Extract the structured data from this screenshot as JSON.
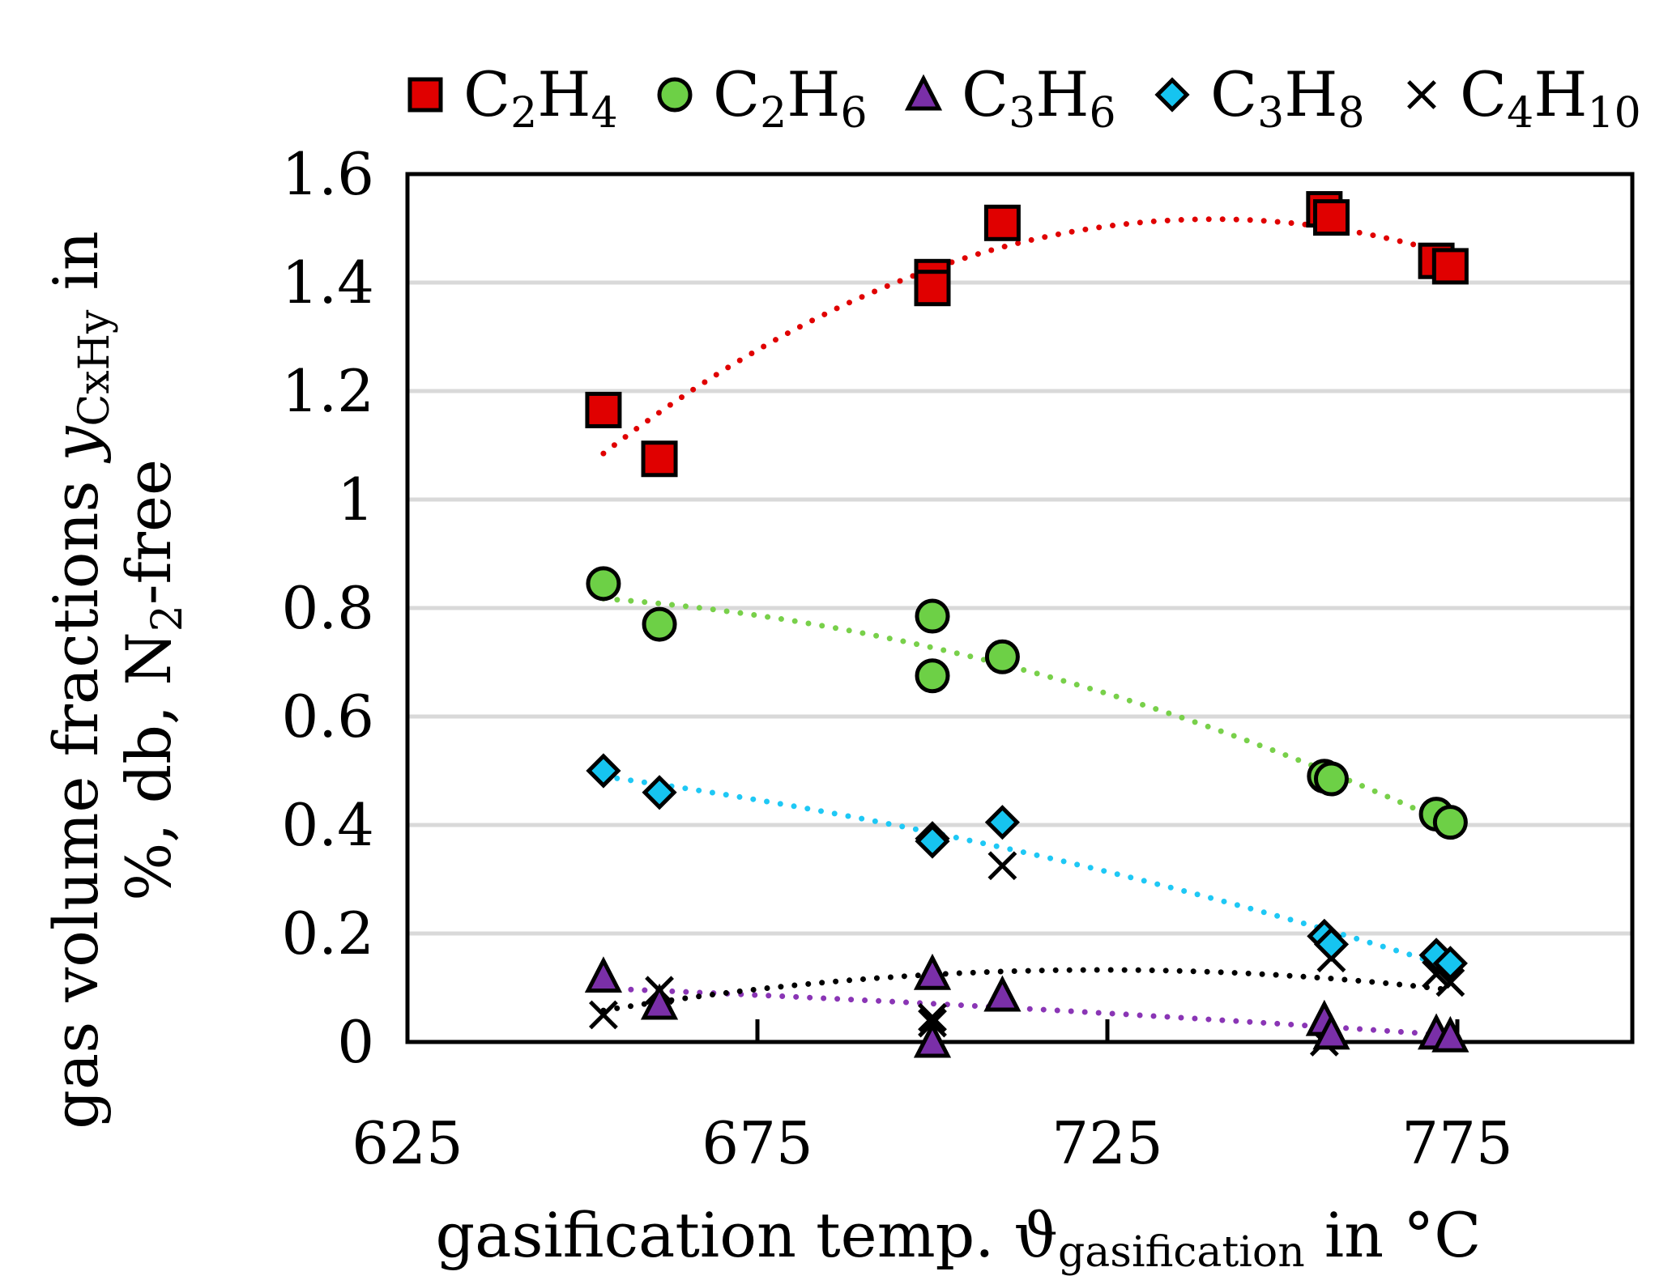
{
  "chart_data": {
    "type": "scatter",
    "title": "",
    "xlabel": {
      "main": "gasification temp. ϑ",
      "sub": "gasification",
      "tail": " in °C"
    },
    "ylabel": {
      "line1_main": "gas volume fractions ",
      "line1_var": "y",
      "line1_sub": "CxHy",
      "line1_tail": " in",
      "line2_main": "%, db, N",
      "line2_sub": "2",
      "line2_tail": "-free"
    },
    "xlim": [
      625,
      800
    ],
    "ylim": [
      0,
      1.6
    ],
    "xticks": [
      625,
      675,
      725,
      775
    ],
    "xtick_labels": [
      "625",
      "675",
      "725",
      "775"
    ],
    "yticks": [
      0,
      0.2,
      0.4,
      0.6,
      0.8,
      1,
      1.2,
      1.4,
      1.6
    ],
    "ytick_labels": [
      "0",
      "0.2",
      "0.4",
      "0.6",
      "0.8",
      "1",
      "1.2",
      "1.4",
      "1.6"
    ],
    "grid": "horizontal",
    "legend_position": "top",
    "series": [
      {
        "name": "C2H4",
        "label_main": "C",
        "label_sub1": "2",
        "label_mid": "H",
        "label_sub2": "4",
        "marker": "square",
        "color": "#e00000",
        "trend_color": "#e00000",
        "x": [
          653,
          661,
          700,
          700,
          710,
          756,
          757,
          772,
          774
        ],
        "y": [
          1.165,
          1.075,
          1.41,
          1.39,
          1.51,
          1.535,
          1.52,
          1.44,
          1.43
        ],
        "trend": {
          "type": "poly2",
          "x_range": [
            653,
            774
          ]
        }
      },
      {
        "name": "C2H6",
        "label_main": "C",
        "label_sub1": "2",
        "label_mid": "H",
        "label_sub2": "6",
        "marker": "circle",
        "color": "#6dd046",
        "trend_color": "#78d04a",
        "x": [
          653,
          661,
          700,
          700,
          710,
          756,
          757,
          772,
          774
        ],
        "y": [
          0.845,
          0.77,
          0.785,
          0.675,
          0.71,
          0.49,
          0.485,
          0.42,
          0.405
        ],
        "trend": {
          "type": "poly2",
          "x_range": [
            653,
            774
          ]
        }
      },
      {
        "name": "C3H6",
        "label_main": "C",
        "label_sub1": "3",
        "label_mid": "H",
        "label_sub2": "6",
        "marker": "triangle",
        "color": "#7a2fa8",
        "trend_color": "#8a35b5",
        "x": [
          653,
          661,
          700,
          700,
          710,
          756,
          757,
          772,
          774
        ],
        "y": [
          0.12,
          0.07,
          0.125,
          0.0,
          0.085,
          0.04,
          0.015,
          0.015,
          0.01
        ],
        "trend": {
          "type": "poly2",
          "x_range": [
            653,
            774
          ]
        }
      },
      {
        "name": "C3H8",
        "label_main": "C",
        "label_sub1": "3",
        "label_mid": "H",
        "label_sub2": "8",
        "marker": "diamond",
        "color": "#16c4f0",
        "trend_color": "#1ec8f5",
        "x": [
          653,
          661,
          700,
          700,
          710,
          756,
          757,
          772,
          774
        ],
        "y": [
          0.5,
          0.46,
          0.375,
          0.37,
          0.405,
          0.195,
          0.18,
          0.16,
          0.145
        ],
        "trend": {
          "type": "poly2",
          "x_range": [
            653,
            774
          ]
        }
      },
      {
        "name": "C4H10",
        "label_main": "C",
        "label_sub1": "4",
        "label_mid": "H",
        "label_sub2": "10",
        "marker": "x",
        "color": "#000000",
        "trend_color": "#000000",
        "x": [
          653,
          661,
          700,
          700,
          710,
          756,
          757,
          772,
          774
        ],
        "y": [
          0.05,
          0.095,
          0.045,
          0.035,
          0.325,
          0.0,
          0.155,
          0.125,
          0.11
        ],
        "trend": {
          "type": "poly2",
          "x_range": [
            653,
            774
          ]
        }
      }
    ]
  }
}
